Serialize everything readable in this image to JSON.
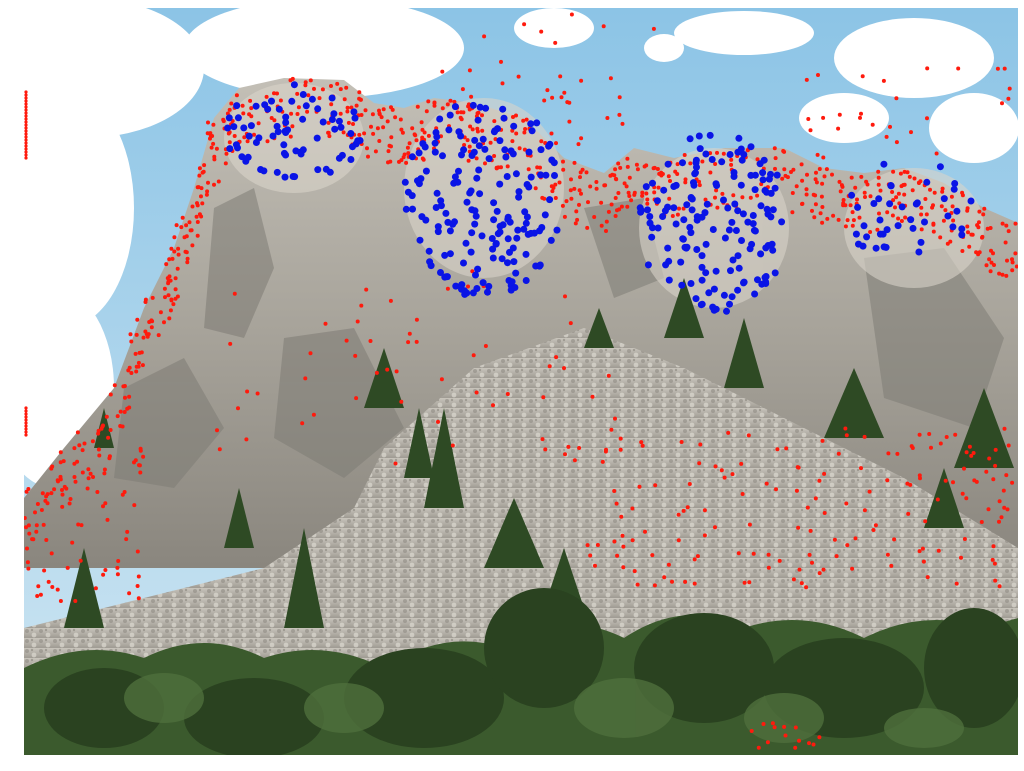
{
  "figure": {
    "subject": "mountain-rock-photo",
    "colors": {
      "sky": "#a9d3ea",
      "cloud": "#ffffff",
      "rock_face": "#b7b2a8",
      "rock_shadow": "#8e8b84",
      "talus": "#c5c0b6",
      "talus_dark": "#9a958c",
      "tree": "#2e4a24",
      "tree_light": "#4d6b3a",
      "keypoint_small": "#ff1a0d",
      "keypoint_large": "#0a14e6"
    },
    "keypoint_sets": [
      {
        "marker": "small-red-dot",
        "color": "#ff1a0d"
      },
      {
        "marker": "large-blue-dot",
        "color": "#0a14e6"
      }
    ]
  }
}
